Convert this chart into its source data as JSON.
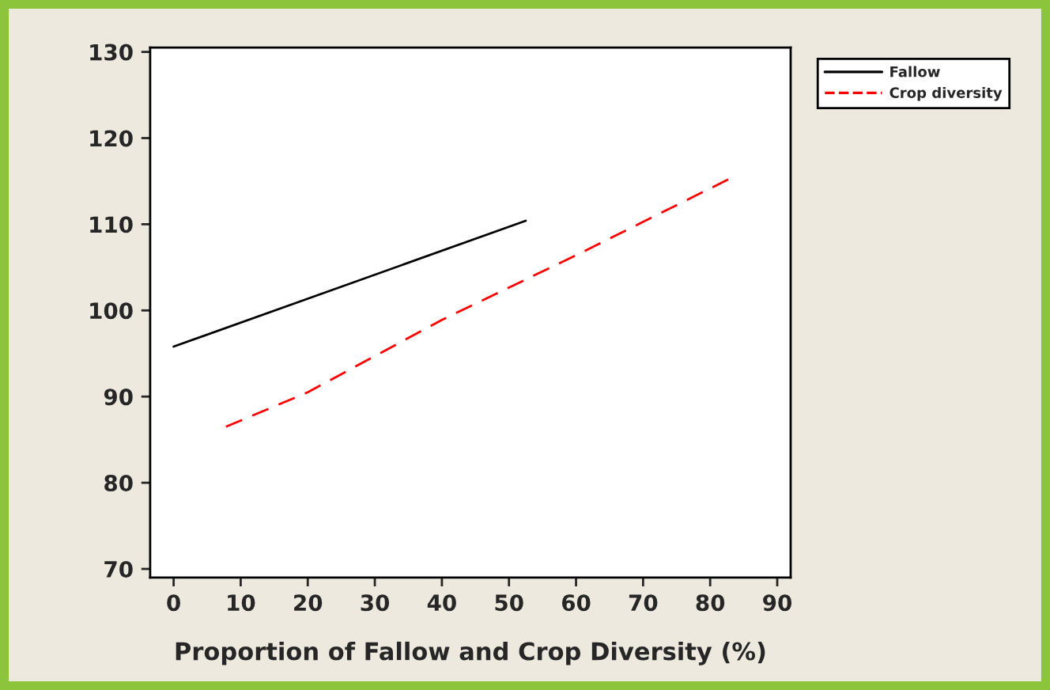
{
  "chart_data": {
    "type": "line",
    "xlabel": "Proportion of Fallow and Crop Diversity (%)",
    "xlim": [
      -3.5,
      92
    ],
    "xticks": [
      0,
      10,
      20,
      30,
      40,
      50,
      60,
      70,
      80,
      90
    ],
    "ylim": [
      69,
      130.5
    ],
    "yticks": [
      70,
      80,
      90,
      100,
      110,
      120,
      130
    ],
    "legend": "top right",
    "grid": false,
    "series": [
      {
        "name": "Fallow",
        "color": "#000000",
        "line_style": "solid",
        "x": [
          0,
          52.5
        ],
        "values": [
          95.8,
          110.4
        ]
      },
      {
        "name": "Crop diversity",
        "color": "#ff0000",
        "line_style": "dashed",
        "x": [
          7.8,
          20,
          40,
          60,
          83.2
        ],
        "values": [
          86.5,
          90.5,
          98.9,
          106.4,
          115.4
        ]
      }
    ]
  }
}
